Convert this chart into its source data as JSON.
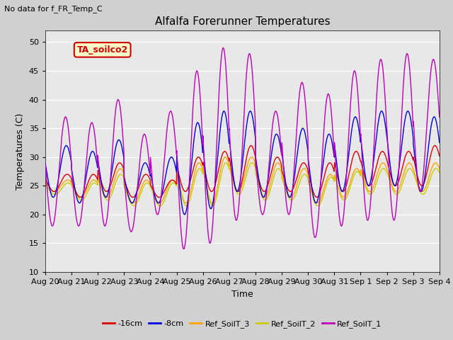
{
  "title": "Alfalfa Forerunner Temperatures",
  "xlabel": "Time",
  "ylabel": "Temperatures (C)",
  "text_top_left": "No data for f_FR_Temp_C",
  "annotation_label": "TA_soilco2",
  "ylim": [
    10,
    52
  ],
  "xlim": [
    0,
    15.0
  ],
  "x_tick_labels": [
    "Aug 20",
    "Aug 21",
    "Aug 22",
    "Aug 23",
    "Aug 24",
    "Aug 25",
    "Aug 26",
    "Aug 27",
    "Aug 28",
    "Aug 29",
    "Aug 30",
    "Aug 31",
    "Sep 1",
    "Sep 2",
    "Sep 3",
    "Sep 4"
  ],
  "legend_entries": [
    "-16cm",
    "-8cm",
    "Ref_SoilT_3",
    "Ref_SoilT_2",
    "Ref_SoilT_1"
  ],
  "line_colors": [
    "#dd0000",
    "#0000dd",
    "#ffa500",
    "#cccc00",
    "#bb00bb"
  ],
  "background_color": "#e8e8e8",
  "fig_background": "#d0d0d0",
  "grid_color": "#ffffff",
  "n_days": 15
}
